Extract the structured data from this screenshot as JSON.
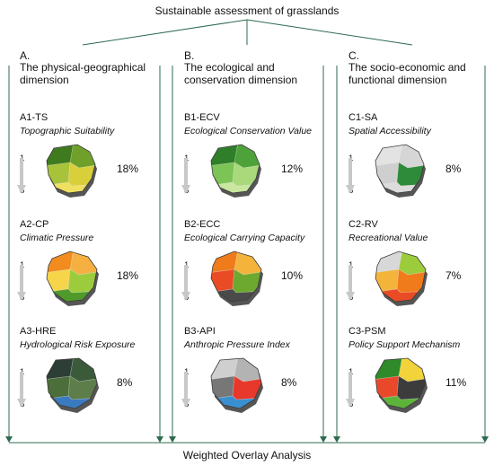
{
  "title": "Sustainable assessment of grasslands",
  "footer": "Weighted Overlay Analysis",
  "columns": [
    {
      "heading_letter": "A.",
      "heading_text_1": "The physical-geographical",
      "heading_text_2": "dimension",
      "indicators": [
        {
          "code": "A1-TS",
          "name": "Topographic Suitability",
          "weight": "18%",
          "scale_top": "1",
          "scale_bottom": "5",
          "map_icon": "topography-map-icon",
          "colors": [
            "#3f7a1e",
            "#6ea02a",
            "#a8c23a",
            "#d9cf3a",
            "#f0e060"
          ]
        },
        {
          "code": "A2-CP",
          "name": "Climatic Pressure",
          "weight": "18%",
          "scale_top": "1",
          "scale_bottom": "5",
          "map_icon": "climate-map-icon",
          "colors": [
            "#f28c1e",
            "#f5b041",
            "#f7d54a",
            "#9ccc3c",
            "#4f9a2a"
          ]
        },
        {
          "code": "A3-HRE",
          "name": "Hydrological Risk Exposure",
          "weight": "8%",
          "scale_top": "1",
          "scale_bottom": "5",
          "map_icon": "hydrology-map-icon",
          "colors": [
            "#2c3e35",
            "#3a5a3a",
            "#4b6e3a",
            "#5d7d4a",
            "#3a7ac0"
          ]
        }
      ]
    },
    {
      "heading_letter": "B.",
      "heading_text_1": "The ecological and",
      "heading_text_2": "conservation dimension",
      "indicators": [
        {
          "code": "B1-ECV",
          "name": "Ecological Conservation Value",
          "weight": "12%",
          "scale_top": "1",
          "scale_bottom": "5",
          "map_icon": "conservation-map-icon",
          "colors": [
            "#2f7f2a",
            "#4ea23a",
            "#7cc455",
            "#a9d97a",
            "#c9e79f"
          ]
        },
        {
          "code": "B2-ECC",
          "name": "Ecological Carrying Capacity",
          "weight": "10%",
          "scale_top": "1",
          "scale_bottom": "5",
          "map_icon": "capacity-map-icon",
          "colors": [
            "#f07b1b",
            "#f4b43c",
            "#e94b25",
            "#6da82f",
            "#4a4a4a"
          ]
        },
        {
          "code": "B3-API",
          "name": "Anthropic Pressure Index",
          "weight": "8%",
          "scale_top": "1",
          "scale_bottom": "5",
          "map_icon": "pressure-map-icon",
          "colors": [
            "#cfcfcf",
            "#b3b3b3",
            "#777777",
            "#e8382b",
            "#3a8fd0"
          ]
        }
      ]
    },
    {
      "heading_letter": "C.",
      "heading_text_1": "The socio-economic and",
      "heading_text_2": "functional dimension",
      "indicators": [
        {
          "code": "C1-SA",
          "name": "Spatial Accessibility",
          "weight": "8%",
          "scale_top": "1",
          "scale_bottom": "5",
          "map_icon": "accessibility-map-icon",
          "colors": [
            "#e3e3e3",
            "#d6d6d6",
            "#cfcfcf",
            "#2e8b3a",
            "#dcdcdc"
          ]
        },
        {
          "code": "C2-RV",
          "name": "Recreational Value",
          "weight": "7%",
          "scale_top": "1",
          "scale_bottom": "5",
          "map_icon": "recreation-map-icon",
          "colors": [
            "#d8d8d8",
            "#9ccc3c",
            "#f4b43c",
            "#f07b1b",
            "#e94b25"
          ]
        },
        {
          "code": "C3-PSM",
          "name": "Policy Support Mechanism",
          "weight": "11%",
          "scale_top": "1",
          "scale_bottom": "5",
          "map_icon": "policy-map-icon",
          "colors": [
            "#2f8a2a",
            "#f2d33a",
            "#e9482a",
            "#3c3c3c",
            "#5db33a"
          ]
        }
      ]
    }
  ]
}
